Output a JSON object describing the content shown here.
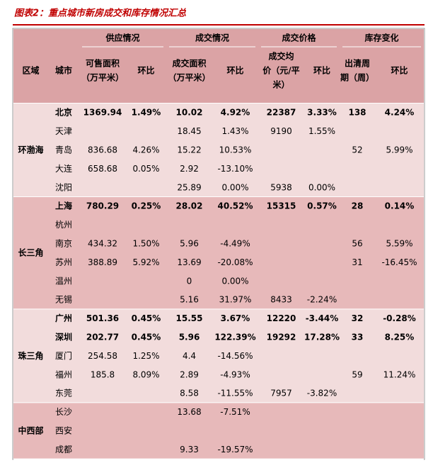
{
  "header": {
    "title": "图表2：重点城市新房成交和库存情况汇总"
  },
  "table": {
    "groups": [
      "供应情况",
      "成交情况",
      "成交价格",
      "库存变化"
    ],
    "columns": [
      [
        "区域"
      ],
      [
        "城市"
      ],
      [
        "可售面积",
        "（万平米）"
      ],
      [
        "环比"
      ],
      [
        "成交面积",
        "（万平米）"
      ],
      [
        "环比"
      ],
      [
        "成交均",
        "价（元/平",
        "米）"
      ],
      [
        "环比"
      ],
      [
        "出清周",
        "期（周）"
      ],
      [
        "环比"
      ]
    ],
    "regions": [
      {
        "name": "环渤海",
        "rows": [
          {
            "city": "北京",
            "bold": true,
            "cells": [
              "1369.94",
              "1.49%",
              "10.02",
              "4.92%",
              "22387",
              "3.33%",
              "138",
              "4.24%"
            ]
          },
          {
            "city": "天津",
            "cells": [
              null,
              null,
              "18.45",
              "1.43%",
              "9190",
              "1.55%",
              null,
              null
            ]
          },
          {
            "city": "青岛",
            "cells": [
              "836.68",
              "4.26%",
              "15.22",
              "10.53%",
              null,
              null,
              "52",
              "5.99%"
            ]
          },
          {
            "city": "大连",
            "cells": [
              "658.68",
              "0.05%",
              "2.92",
              "-13.10%",
              null,
              null,
              null,
              null
            ]
          },
          {
            "city": "沈阳",
            "cells": [
              null,
              null,
              "25.89",
              "0.00%",
              "5938",
              "0.00%",
              null,
              null
            ]
          }
        ]
      },
      {
        "name": "长三角",
        "rows": [
          {
            "city": "上海",
            "bold": true,
            "cells": [
              "780.29",
              "0.25%",
              "28.02",
              "40.52%",
              "15315",
              "0.57%",
              "28",
              "0.14%"
            ]
          },
          {
            "city": "杭州",
            "cells": [
              null,
              null,
              null,
              null,
              null,
              null,
              null,
              null
            ]
          },
          {
            "city": "南京",
            "cells": [
              "434.32",
              "1.50%",
              "5.96",
              "-4.49%",
              null,
              null,
              "56",
              "5.59%"
            ]
          },
          {
            "city": "苏州",
            "cells": [
              "388.89",
              "5.92%",
              "13.69",
              "-20.08%",
              null,
              null,
              "31",
              "-16.45%"
            ]
          },
          {
            "city": "温州",
            "cells": [
              null,
              null,
              "0",
              "0.00%",
              null,
              null,
              null,
              null
            ]
          },
          {
            "city": "无锡",
            "cells": [
              null,
              null,
              "5.16",
              "31.97%",
              "8433",
              "-2.24%",
              null,
              null
            ]
          }
        ]
      },
      {
        "name": "珠三角",
        "rows": [
          {
            "city": "广州",
            "bold": true,
            "cells": [
              "501.36",
              "0.45%",
              "15.55",
              "3.67%",
              "12220",
              "-3.44%",
              "32",
              "-0.28%"
            ]
          },
          {
            "city": "深圳",
            "bold": true,
            "cells": [
              "202.77",
              "0.45%",
              "5.96",
              "122.39%",
              "19292",
              "17.28%",
              "33",
              "8.25%"
            ]
          },
          {
            "city": "厦门",
            "cells": [
              "254.58",
              "1.25%",
              "4.4",
              "-14.56%",
              null,
              null,
              null,
              null
            ]
          },
          {
            "city": "福州",
            "cells": [
              "185.8",
              "8.09%",
              "2.89",
              "-4.93%",
              null,
              null,
              "59",
              "11.24%"
            ]
          },
          {
            "city": "东莞",
            "cells": [
              null,
              null,
              "8.58",
              "-11.55%",
              "7957",
              "-3.82%",
              null,
              null
            ]
          }
        ]
      },
      {
        "name": "中西部",
        "rows": [
          {
            "city": "长沙",
            "cells": [
              null,
              null,
              "13.68",
              "-7.51%",
              null,
              null,
              null,
              null
            ]
          },
          {
            "city": "西安",
            "cells": [
              null,
              null,
              null,
              null,
              null,
              null,
              null,
              null
            ]
          },
          {
            "city": "成都",
            "cells": [
              null,
              null,
              "9.33",
              "-19.57%",
              null,
              null,
              null,
              null
            ]
          }
        ]
      }
    ]
  }
}
